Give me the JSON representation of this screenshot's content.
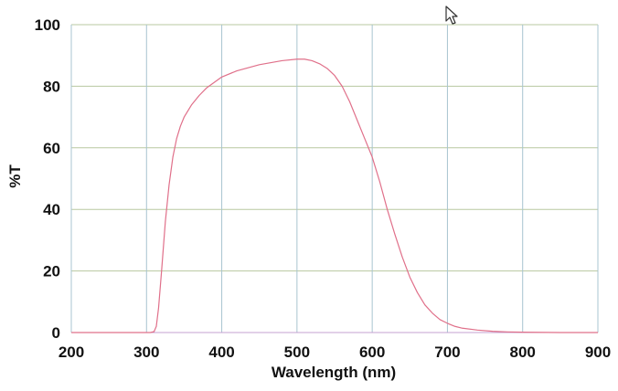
{
  "chart_data": {
    "type": "line",
    "title": "",
    "xlabel": "Wavelength (nm)",
    "ylabel": "%T",
    "xlim": [
      200,
      900
    ],
    "ylim": [
      0,
      100
    ],
    "x_ticks": [
      "200",
      "300",
      "400",
      "500",
      "600",
      "700",
      "800",
      "900"
    ],
    "y_ticks": [
      "0",
      "20",
      "40",
      "60",
      "80",
      "100"
    ],
    "grid": true,
    "legend": "none",
    "colors": {
      "line": "#e0708a",
      "grid_horizontal": "#b8c8a0",
      "grid_vertical": "#a8c4d0",
      "border_bottom": "#c4a0d0"
    },
    "series": [
      {
        "x": [
          200,
          250,
          300,
          305,
          310,
          313,
          316,
          320,
          325,
          330,
          335,
          340,
          345,
          350,
          360,
          370,
          380,
          400,
          420,
          450,
          480,
          500,
          510,
          520,
          530,
          540,
          550,
          560,
          570,
          580,
          590,
          600,
          610,
          620,
          630,
          640,
          650,
          660,
          670,
          680,
          690,
          700,
          710,
          720,
          740,
          760,
          780,
          800,
          850,
          900
        ],
        "y": [
          0,
          0,
          0,
          0,
          0.3,
          2,
          8,
          20,
          36,
          48,
          57,
          63,
          67,
          70,
          74,
          77,
          79.5,
          83,
          85,
          87,
          88.3,
          88.8,
          88.8,
          88.3,
          87.3,
          85.8,
          83.5,
          80,
          75,
          69,
          63,
          57,
          49,
          40,
          32,
          24.5,
          18,
          13,
          9,
          6.3,
          4.2,
          3,
          2,
          1.4,
          0.8,
          0.4,
          0.2,
          0.1,
          0,
          0
        ]
      }
    ]
  },
  "cursor_icon": "mouse-pointer-icon"
}
